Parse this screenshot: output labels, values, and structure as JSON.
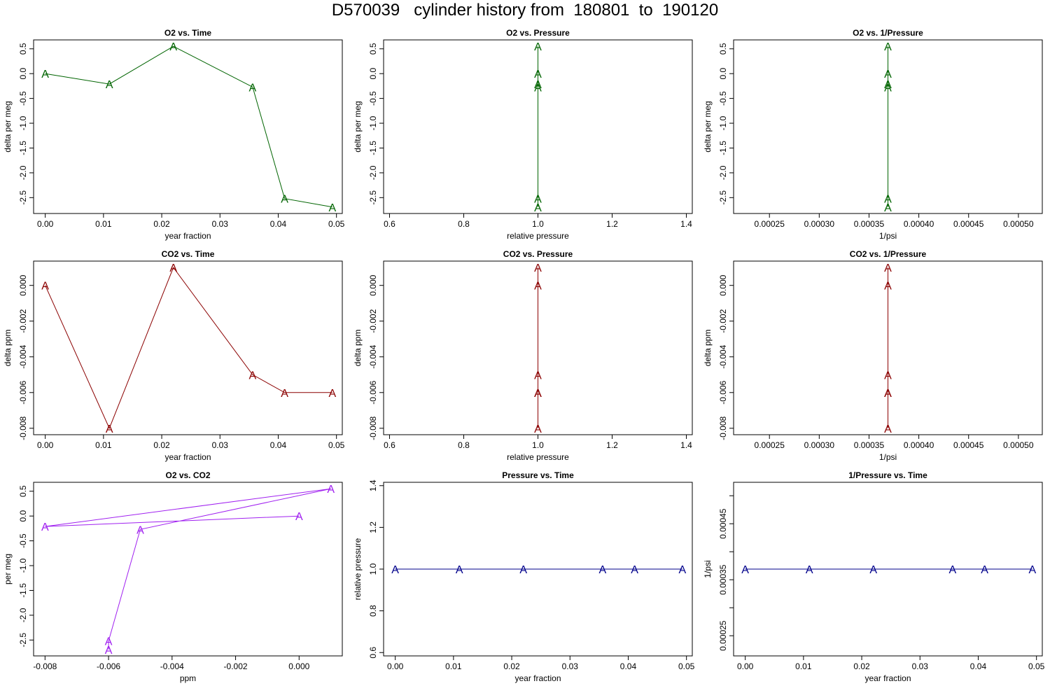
{
  "title": "D570039   cylinder history from  180801  to  190120",
  "colors": {
    "o2": "#006400",
    "co2": "#8b0000",
    "o2co2": "#a020f0",
    "pressure": "#00008b",
    "axis": "#000000"
  },
  "point_symbol": "A",
  "chart_data": [
    {
      "type": "line",
      "title": "O2 vs. Time",
      "xlabel": "year fraction",
      "ylabel": "delta per meg",
      "color": "o2",
      "x": [
        0.0,
        0.011,
        0.022,
        0.0356,
        0.0411,
        0.0493
      ],
      "y": [
        0.0,
        -0.21,
        0.55,
        -0.27,
        -2.52,
        -2.69
      ],
      "xlim": [
        -0.002,
        0.051
      ],
      "ylim": [
        -2.82,
        0.68
      ],
      "xticks": [
        0.0,
        0.01,
        0.02,
        0.03,
        0.04,
        0.05
      ],
      "xtick_labels": [
        "0.00",
        "0.01",
        "0.02",
        "0.03",
        "0.04",
        "0.05"
      ],
      "yticks": [
        -2.5,
        -2.0,
        -1.5,
        -1.0,
        -0.5,
        0.0,
        0.5
      ],
      "ytick_labels": [
        "-2.5",
        "-2.0",
        "-1.5",
        "-1.0",
        "-0.5",
        "0.0",
        "0.5"
      ]
    },
    {
      "type": "line",
      "title": "O2 vs. Pressure",
      "xlabel": "relative pressure",
      "ylabel": "delta per meg",
      "color": "o2",
      "x": [
        1.0,
        1.0,
        1.0,
        1.0,
        1.0,
        1.0
      ],
      "y": [
        0.0,
        -0.21,
        0.55,
        -0.27,
        -2.52,
        -2.69
      ],
      "xlim": [
        0.584,
        1.416
      ],
      "ylim": [
        -2.82,
        0.68
      ],
      "xticks": [
        0.6,
        0.8,
        1.0,
        1.2,
        1.4
      ],
      "xtick_labels": [
        "0.6",
        "0.8",
        "1.0",
        "1.2",
        "1.4"
      ],
      "yticks": [
        -2.5,
        -2.0,
        -1.5,
        -1.0,
        -0.5,
        0.0,
        0.5
      ],
      "ytick_labels": [
        "-2.5",
        "-2.0",
        "-1.5",
        "-1.0",
        "-0.5",
        "0.0",
        "0.5"
      ]
    },
    {
      "type": "line",
      "title": "O2 vs. 1/Pressure",
      "xlabel": "1/psi",
      "ylabel": "delta per meg",
      "color": "o2",
      "x": [
        0.000369,
        0.000369,
        0.000369,
        0.000369,
        0.000369,
        0.000369
      ],
      "y": [
        0.0,
        -0.21,
        0.55,
        -0.27,
        -2.52,
        -2.69
      ],
      "xlim": [
        0.000214,
        0.000524
      ],
      "ylim": [
        -2.82,
        0.68
      ],
      "xticks": [
        0.00025,
        0.0003,
        0.00035,
        0.0004,
        0.00045,
        0.0005
      ],
      "xtick_labels": [
        "0.00025",
        "0.00030",
        "0.00035",
        "0.00040",
        "0.00045",
        "0.00050"
      ],
      "yticks": [
        -2.5,
        -2.0,
        -1.5,
        -1.0,
        -0.5,
        0.0,
        0.5
      ],
      "ytick_labels": [
        "-2.5",
        "-2.0",
        "-1.5",
        "-1.0",
        "-0.5",
        "0.0",
        "0.5"
      ]
    },
    {
      "type": "line",
      "title": "CO2 vs. Time",
      "xlabel": "year fraction",
      "ylabel": "delta ppm",
      "color": "co2",
      "x": [
        0.0,
        0.011,
        0.022,
        0.0356,
        0.0411,
        0.0493
      ],
      "y": [
        0.0,
        -0.008,
        0.001,
        -0.005,
        -0.006,
        -0.006
      ],
      "xlim": [
        -0.002,
        0.051
      ],
      "ylim": [
        -0.00836,
        0.00136
      ],
      "xticks": [
        0.0,
        0.01,
        0.02,
        0.03,
        0.04,
        0.05
      ],
      "xtick_labels": [
        "0.00",
        "0.01",
        "0.02",
        "0.03",
        "0.04",
        "0.05"
      ],
      "yticks": [
        -0.008,
        -0.006,
        -0.004,
        -0.002,
        0.0
      ],
      "ytick_labels": [
        "-0.008",
        "-0.006",
        "-0.004",
        "-0.002",
        "0.000"
      ]
    },
    {
      "type": "line",
      "title": "CO2 vs. Pressure",
      "xlabel": "relative pressure",
      "ylabel": "delta ppm",
      "color": "co2",
      "x": [
        1.0,
        1.0,
        1.0,
        1.0,
        1.0,
        1.0
      ],
      "y": [
        0.0,
        -0.008,
        0.001,
        -0.005,
        -0.006,
        -0.006
      ],
      "xlim": [
        0.584,
        1.416
      ],
      "ylim": [
        -0.00836,
        0.00136
      ],
      "xticks": [
        0.6,
        0.8,
        1.0,
        1.2,
        1.4
      ],
      "xtick_labels": [
        "0.6",
        "0.8",
        "1.0",
        "1.2",
        "1.4"
      ],
      "yticks": [
        -0.008,
        -0.006,
        -0.004,
        -0.002,
        0.0
      ],
      "ytick_labels": [
        "-0.008",
        "-0.006",
        "-0.004",
        "-0.002",
        "0.000"
      ]
    },
    {
      "type": "line",
      "title": "CO2 vs. 1/Pressure",
      "xlabel": "1/psi",
      "ylabel": "delta ppm",
      "color": "co2",
      "x": [
        0.000369,
        0.000369,
        0.000369,
        0.000369,
        0.000369,
        0.000369
      ],
      "y": [
        0.0,
        -0.008,
        0.001,
        -0.005,
        -0.006,
        -0.006
      ],
      "xlim": [
        0.000214,
        0.000524
      ],
      "ylim": [
        -0.00836,
        0.00136
      ],
      "xticks": [
        0.00025,
        0.0003,
        0.00035,
        0.0004,
        0.00045,
        0.0005
      ],
      "xtick_labels": [
        "0.00025",
        "0.00030",
        "0.00035",
        "0.00040",
        "0.00045",
        "0.00050"
      ],
      "yticks": [
        -0.008,
        -0.006,
        -0.004,
        -0.002,
        0.0
      ],
      "ytick_labels": [
        "-0.008",
        "-0.006",
        "-0.004",
        "-0.002",
        "0.000"
      ]
    },
    {
      "type": "line",
      "title": "O2 vs. CO2",
      "xlabel": "ppm",
      "ylabel": "per meg",
      "color": "o2co2",
      "x": [
        0.0,
        -0.008,
        0.001,
        -0.005,
        -0.006,
        -0.006
      ],
      "y": [
        0.0,
        -0.21,
        0.55,
        -0.27,
        -2.52,
        -2.69
      ],
      "xlim": [
        -0.00836,
        0.00136
      ],
      "ylim": [
        -2.82,
        0.68
      ],
      "xticks": [
        -0.008,
        -0.006,
        -0.004,
        -0.002,
        0.0
      ],
      "xtick_labels": [
        "-0.008",
        "-0.006",
        "-0.004",
        "-0.002",
        "0.000"
      ],
      "yticks": [
        -2.5,
        -2.0,
        -1.5,
        -1.0,
        -0.5,
        0.0,
        0.5
      ],
      "ytick_labels": [
        "-2.5",
        "-2.0",
        "-1.5",
        "-1.0",
        "-0.5",
        "0.0",
        "0.5"
      ]
    },
    {
      "type": "line",
      "title": "Pressure vs. Time",
      "xlabel": "year fraction",
      "ylabel": "relative pressure",
      "color": "pressure",
      "x": [
        0.0,
        0.011,
        0.022,
        0.0356,
        0.0411,
        0.0493
      ],
      "y": [
        1.0,
        1.0,
        1.0,
        1.0,
        1.0,
        1.0
      ],
      "xlim": [
        -0.002,
        0.051
      ],
      "ylim": [
        0.584,
        1.416
      ],
      "xticks": [
        0.0,
        0.01,
        0.02,
        0.03,
        0.04,
        0.05
      ],
      "xtick_labels": [
        "0.00",
        "0.01",
        "0.02",
        "0.03",
        "0.04",
        "0.05"
      ],
      "yticks": [
        0.6,
        0.8,
        1.0,
        1.2,
        1.4
      ],
      "ytick_labels": [
        "0.6",
        "0.8",
        "1.0",
        "1.2",
        "1.4"
      ]
    },
    {
      "type": "line",
      "title": "1/Pressure vs. Time",
      "xlabel": "year fraction",
      "ylabel": "1/psi",
      "color": "pressure",
      "x": [
        0.0,
        0.011,
        0.022,
        0.0356,
        0.0411,
        0.0493
      ],
      "y": [
        0.000369,
        0.000369,
        0.000369,
        0.000369,
        0.000369,
        0.000369
      ],
      "xlim": [
        -0.002,
        0.051
      ],
      "ylim": [
        0.000214,
        0.000524
      ],
      "xticks": [
        0.0,
        0.01,
        0.02,
        0.03,
        0.04,
        0.05
      ],
      "xtick_labels": [
        "0.00",
        "0.01",
        "0.02",
        "0.03",
        "0.04",
        "0.05"
      ],
      "yticks": [
        0.00025,
        0.0003,
        0.00035,
        0.0004,
        0.00045,
        0.0005
      ],
      "ytick_labels": [
        "0.00025",
        "",
        "0.00035",
        "",
        "0.00045",
        ""
      ]
    }
  ]
}
